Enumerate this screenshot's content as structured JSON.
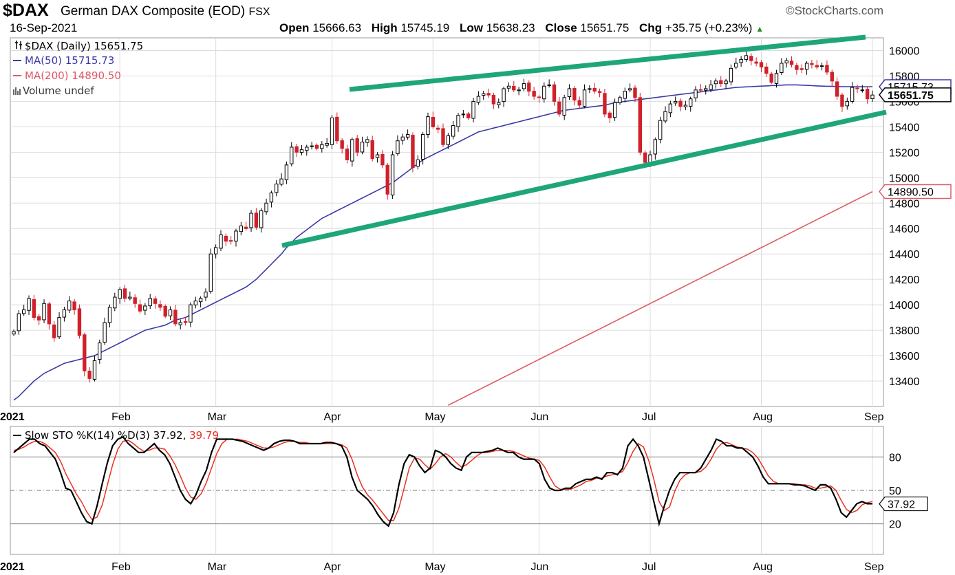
{
  "header": {
    "symbol": "$DAX",
    "company": "German DAX Composite (EOD)",
    "exchange": "FSX",
    "brand": "©StockCharts.com",
    "date": "16-Sep-2021",
    "open_label": "Open",
    "open": "15666.63",
    "high_label": "High",
    "high": "15745.19",
    "low_label": "Low",
    "low": "15638.23",
    "close_label": "Close",
    "close": "15651.75",
    "chg_label": "Chg",
    "chg": "+35.75 (+0.23%)"
  },
  "legend": {
    "price": "$DAX (Daily) 15651.75",
    "ma50": "MA(50) 15715.73",
    "ma200": "MA(200) 14890.50",
    "volume": "Volume undef",
    "sto_prefix": "Slow STO %K(14) %D(3) 37.92, ",
    "sto_d": "39.79"
  },
  "colors": {
    "up": "#000000",
    "down": "#d0202a",
    "ma50": "#3a3aa8",
    "ma200": "#e05a66",
    "trendline": "#1ea67a",
    "k_line": "#000000",
    "d_line": "#e83020",
    "grid": "#dcdcdc"
  },
  "chart_data": [
    {
      "type": "candlestick",
      "title": "$DAX (Daily) 15651.75",
      "ylim": [
        13200,
        16100
      ],
      "yticks": [
        13400,
        13600,
        13800,
        14000,
        14200,
        14400,
        14600,
        14800,
        15000,
        15200,
        15400,
        15600,
        15800,
        16000
      ],
      "xticks": [
        "2021",
        "Feb",
        "Mar",
        "Apr",
        "May",
        "Jun",
        "Jul",
        "Aug",
        "Sep"
      ],
      "last_close_tag": "15651.75",
      "ma50_tag": "15715.73",
      "ma200_tag": "14890.50",
      "closes": [
        13790,
        13930,
        13960,
        14050,
        13900,
        13880,
        14010,
        13850,
        13740,
        13900,
        13960,
        14030,
        13960,
        13760,
        13480,
        13420,
        13560,
        13700,
        13860,
        13980,
        14060,
        14120,
        14050,
        14060,
        14010,
        13950,
        13990,
        14050,
        14010,
        13980,
        13910,
        13960,
        13850,
        13860,
        13860,
        14000,
        14030,
        14050,
        14100,
        14400,
        14450,
        14550,
        14500,
        14500,
        14580,
        14620,
        14600,
        14720,
        14610,
        14740,
        14800,
        14880,
        14950,
        14990,
        15100,
        15240,
        15200,
        15220,
        15240,
        15250,
        15230,
        15260,
        15270,
        15470,
        15290,
        15230,
        15140,
        15300,
        15200,
        15280,
        15300,
        15150,
        15180,
        15100,
        14870,
        15180,
        15290,
        15320,
        15340,
        15080,
        15140,
        15340,
        15480,
        15400,
        15380,
        15260,
        15330,
        15410,
        15490,
        15500,
        15470,
        15600,
        15640,
        15660,
        15650,
        15580,
        15590,
        15700,
        15720,
        15690,
        15690,
        15740,
        15680,
        15640,
        15630,
        15720,
        15730,
        15600,
        15500,
        15630,
        15700,
        15610,
        15570,
        15690,
        15700,
        15680,
        15670,
        15500,
        15470,
        15590,
        15630,
        15680,
        15700,
        15630,
        15200,
        15120,
        15180,
        15300,
        15450,
        15520,
        15580,
        15600,
        15560,
        15570,
        15620,
        15690,
        15690,
        15700,
        15730,
        15760,
        15740,
        15760,
        15860,
        15900,
        15930,
        15960,
        15920,
        15900,
        15870,
        15820,
        15750,
        15820,
        15900,
        15920,
        15890,
        15850,
        15850,
        15900,
        15890,
        15870,
        15880,
        15830,
        15760,
        15640,
        15560,
        15600,
        15710,
        15700,
        15690,
        15620,
        15650
      ],
      "ma50": [
        13250,
        13280,
        13320,
        13360,
        13400,
        13430,
        13460,
        13480,
        13500,
        13520,
        13540,
        13550,
        13560,
        13570,
        13580,
        13590,
        13600,
        13620,
        13640,
        13660,
        13680,
        13700,
        13720,
        13740,
        13760,
        13780,
        13800,
        13810,
        13820,
        13830,
        13840,
        13860,
        13880,
        13890,
        13900,
        13920,
        13940,
        13960,
        13980,
        14000,
        14020,
        14040,
        14060,
        14080,
        14100,
        14120,
        14140,
        14170,
        14200,
        14240,
        14280,
        14320,
        14360,
        14400,
        14450,
        14490,
        14530,
        14560,
        14590,
        14620,
        14650,
        14680,
        14700,
        14720,
        14740,
        14760,
        14780,
        14800,
        14820,
        14840,
        14860,
        14880,
        14900,
        14920,
        14940,
        14960,
        14990,
        15020,
        15050,
        15080,
        15110,
        15140,
        15160,
        15180,
        15200,
        15220,
        15240,
        15260,
        15280,
        15300,
        15320,
        15340,
        15360,
        15370,
        15380,
        15390,
        15400,
        15410,
        15420,
        15430,
        15440,
        15450,
        15460,
        15470,
        15480,
        15490,
        15500,
        15510,
        15520,
        15530,
        15535,
        15540,
        15545,
        15550,
        15555,
        15560,
        15565,
        15570,
        15580,
        15590,
        15595,
        15600,
        15605,
        15610,
        15615,
        15620,
        15625,
        15630,
        15635,
        15640,
        15645,
        15650,
        15655,
        15660,
        15665,
        15670,
        15675,
        15680,
        15685,
        15690,
        15695,
        15700,
        15705,
        15710,
        15712,
        15714,
        15716,
        15718,
        15720,
        15722,
        15724,
        15726,
        15728,
        15730,
        15730,
        15730,
        15728,
        15726,
        15724,
        15722,
        15720,
        15719,
        15718,
        15717,
        15716,
        15716,
        15716,
        15715,
        15715,
        15715,
        15716
      ],
      "ma200": [
        12430,
        12450,
        12470,
        12490,
        12510,
        12530,
        12550,
        12570,
        12590,
        12610,
        12630,
        12650,
        12670,
        12690,
        12710,
        12730,
        12750,
        12770,
        12790,
        12810,
        12830,
        12850,
        12870,
        12890,
        12910,
        12930,
        12950,
        12970,
        12990,
        13010,
        13030,
        13050,
        13070,
        13090,
        13110,
        13130,
        13150,
        13170,
        13190,
        13210,
        13230,
        13250,
        13270,
        13290,
        13310,
        13330,
        13350,
        13370,
        13390,
        13410,
        13430,
        13450,
        13470,
        13490,
        13510,
        13530,
        13550,
        13570,
        13590,
        13610,
        13630,
        13650,
        13670,
        13690,
        13710,
        13730,
        13750,
        13770,
        13790,
        13810,
        13830,
        13850,
        13870,
        13890,
        13910,
        13930,
        13950,
        13970,
        13990,
        14010,
        14030,
        14050,
        14070,
        14090,
        14110,
        14130,
        14150,
        14170,
        14190,
        14210,
        14230,
        14250,
        14270,
        14290,
        14310,
        14330,
        14350,
        14370,
        14390,
        14410,
        14430,
        14450,
        14470,
        14490,
        14510,
        14530,
        14550,
        14570,
        14590,
        14610,
        14630,
        14650,
        14670,
        14690,
        14710,
        14730,
        14750,
        14770,
        14790,
        14810,
        14830,
        14850,
        14870,
        14890
      ]
    },
    {
      "type": "line",
      "title": "Slow STO %K(14) %D(3) 37.92, 39.79",
      "ylim": [
        0,
        100
      ],
      "yticks": [
        20,
        50,
        80
      ],
      "xticks": [
        "2021",
        "Feb",
        "Mar",
        "Apr",
        "May",
        "Jun",
        "Jul",
        "Aug",
        "Sep"
      ],
      "k_tag": "37.92",
      "series": [
        {
          "name": "%K",
          "values": [
            84,
            88,
            92,
            96,
            96,
            92,
            90,
            84,
            78,
            66,
            52,
            50,
            40,
            30,
            22,
            20,
            36,
            56,
            75,
            90,
            96,
            98,
            92,
            88,
            84,
            84,
            88,
            92,
            86,
            82,
            74,
            62,
            50,
            42,
            38,
            46,
            58,
            68,
            84,
            96,
            96,
            96,
            96,
            95,
            94,
            92,
            90,
            88,
            86,
            88,
            92,
            94,
            95,
            95,
            94,
            92,
            92,
            92,
            92,
            92,
            93,
            93,
            92,
            90,
            80,
            62,
            50,
            46,
            42,
            36,
            28,
            22,
            18,
            30,
            55,
            74,
            82,
            80,
            72,
            66,
            70,
            86,
            84,
            80,
            74,
            70,
            68,
            80,
            84,
            84,
            84,
            85,
            86,
            88,
            86,
            84,
            84,
            80,
            78,
            78,
            78,
            74,
            60,
            52,
            50,
            50,
            52,
            52,
            56,
            58,
            60,
            60,
            62,
            60,
            66,
            66,
            64,
            70,
            90,
            96,
            90,
            80,
            60,
            40,
            20,
            36,
            50,
            60,
            66,
            66,
            66,
            66,
            70,
            78,
            86,
            96,
            94,
            90,
            90,
            88,
            88,
            84,
            80,
            72,
            62,
            56,
            56,
            56,
            56,
            56,
            55,
            55,
            54,
            52,
            50,
            55,
            55,
            52,
            42,
            30,
            26,
            32,
            38,
            40,
            38,
            38
          ]
        },
        {
          "name": "%D",
          "values": [
            86,
            87,
            89,
            92,
            94,
            94,
            92,
            88,
            84,
            76,
            65,
            56,
            47,
            40,
            31,
            24,
            26,
            37,
            55,
            73,
            87,
            94,
            95,
            92,
            88,
            85,
            86,
            88,
            88,
            87,
            81,
            73,
            63,
            52,
            44,
            42,
            47,
            57,
            70,
            83,
            92,
            96,
            96,
            96,
            95,
            94,
            92,
            90,
            88,
            88,
            89,
            91,
            93,
            94,
            94,
            93,
            93,
            92,
            92,
            92,
            92,
            92,
            92,
            91,
            88,
            78,
            64,
            53,
            46,
            41,
            35,
            29,
            23,
            23,
            34,
            52,
            70,
            79,
            78,
            73,
            69,
            74,
            80,
            83,
            80,
            75,
            71,
            73,
            77,
            81,
            84,
            84,
            85,
            86,
            86,
            86,
            85,
            83,
            81,
            79,
            78,
            77,
            71,
            62,
            54,
            51,
            51,
            51,
            53,
            55,
            58,
            59,
            61,
            61,
            63,
            64,
            65,
            67,
            75,
            85,
            92,
            89,
            77,
            60,
            40,
            32,
            35,
            49,
            59,
            64,
            66,
            66,
            67,
            71,
            78,
            87,
            92,
            93,
            91,
            89,
            88,
            87,
            84,
            79,
            71,
            63,
            58,
            56,
            56,
            56,
            56,
            55,
            55,
            54,
            52,
            52,
            53,
            54,
            50,
            41,
            33,
            30,
            32,
            37,
            39,
            40
          ]
        }
      ]
    }
  ]
}
